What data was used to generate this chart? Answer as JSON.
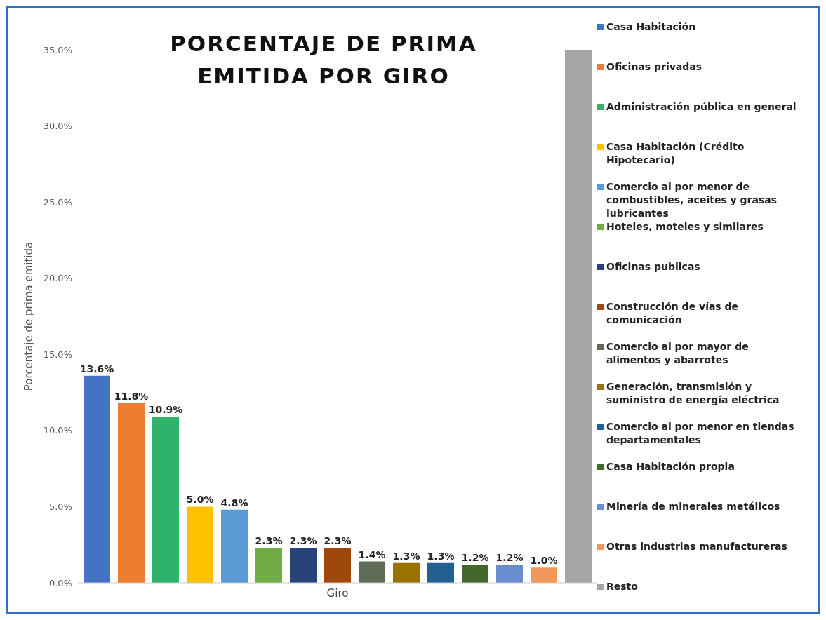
{
  "chart_data": {
    "type": "bar",
    "title": "PORCENTAJE DE PRIMA EMITIDA POR GIRO",
    "xlabel": "Giro",
    "ylabel": "Porcentaje de prima emitida",
    "categories": [
      null
    ],
    "series": [
      {
        "name": "Casa Habitación",
        "color": "#4472c4",
        "values": [
          13.6
        ],
        "value_labels": [
          "13.6%"
        ]
      },
      {
        "name": "Oficinas privadas",
        "color": "#ed7d31",
        "values": [
          11.8
        ],
        "value_labels": [
          "11.8%"
        ]
      },
      {
        "name": "Administración pública en general",
        "color": "#2fb36b",
        "values": [
          10.9
        ],
        "value_labels": [
          "10.9%"
        ]
      },
      {
        "name": "Casa Habitación (Crédito Hipotecario)",
        "color": "#ffc000",
        "values": [
          5.0
        ],
        "value_labels": [
          "5.0%"
        ]
      },
      {
        "name": "Comercio al por menor de combustibles, aceites y grasas lubricantes",
        "color": "#5b9bd5",
        "values": [
          4.8
        ],
        "value_labels": [
          "4.8%"
        ]
      },
      {
        "name": "Hoteles, moteles y similares",
        "color": "#70ad47",
        "values": [
          2.3
        ],
        "value_labels": [
          "2.3%"
        ]
      },
      {
        "name": "Oficinas publicas",
        "color": "#264478",
        "values": [
          2.3
        ],
        "value_labels": [
          "2.3%"
        ]
      },
      {
        "name": "Construcción de vías de comunicación",
        "color": "#9e480e",
        "values": [
          2.3
        ],
        "value_labels": [
          "2.3%"
        ]
      },
      {
        "name": "Comercio al por mayor de alimentos y abarrotes",
        "color": "#5f6b55",
        "values": [
          1.4
        ],
        "value_labels": [
          "1.4%"
        ]
      },
      {
        "name": "Generación, transmisión y suministro de energía eléctrica",
        "color": "#997300",
        "values": [
          1.3
        ],
        "value_labels": [
          "1.3%"
        ]
      },
      {
        "name": "Comercio al por menor en tiendas departamentales",
        "color": "#255e91",
        "values": [
          1.3
        ],
        "value_labels": [
          "1.3%"
        ]
      },
      {
        "name": "Casa Habitación propia",
        "color": "#43682b",
        "values": [
          1.2
        ],
        "value_labels": [
          "1.2%"
        ]
      },
      {
        "name": "Minería de minerales metálicos",
        "color": "#698ed0",
        "values": [
          1.2
        ],
        "value_labels": [
          "1.2%"
        ]
      },
      {
        "name": "Otras industrias manufactureras",
        "color": "#f1975a",
        "values": [
          1.0
        ],
        "value_labels": [
          "1.0%"
        ]
      },
      {
        "name": "Resto",
        "color": "#a5a5a5",
        "values": [
          35.0
        ],
        "value_labels": [
          null
        ]
      }
    ],
    "ylim": [
      0,
      35
    ],
    "yticks": [
      {
        "value": 0,
        "label": "0.0%"
      },
      {
        "value": 5,
        "label": "5.0%"
      },
      {
        "value": 10,
        "label": "10.0%"
      },
      {
        "value": 15,
        "label": "15.0%"
      },
      {
        "value": 20,
        "label": "20.0%"
      },
      {
        "value": 25,
        "label": "25.0%"
      },
      {
        "value": 30,
        "label": "30.0%"
      },
      {
        "value": 35,
        "label": "35.0%"
      }
    ],
    "grid": false,
    "legend": "right",
    "tick_labels": "y"
  }
}
